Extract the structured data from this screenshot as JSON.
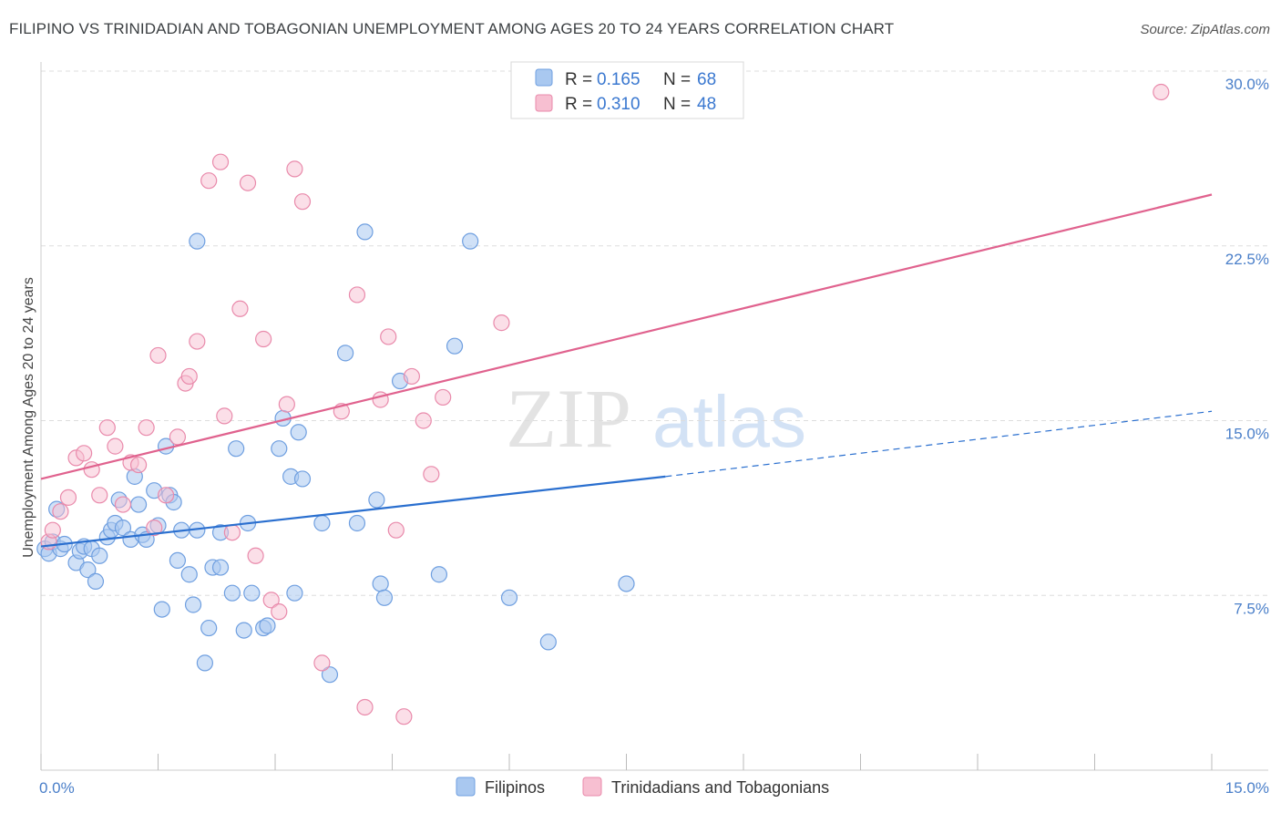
{
  "title": "FILIPINO VS TRINIDADIAN AND TOBAGONIAN UNEMPLOYMENT AMONG AGES 20 TO 24 YEARS CORRELATION CHART",
  "source": "Source: ZipAtlas.com",
  "watermark": {
    "zip": "ZIP",
    "atlas": "atlas"
  },
  "colors": {
    "blue_fill": "#a9c8f0",
    "blue_stroke": "#6f9fe0",
    "blue_line": "#2a6fcf",
    "pink_fill": "#f7bfd1",
    "pink_stroke": "#e98aab",
    "pink_line": "#e0628e",
    "tick": "#4a7fc9",
    "grid": "#dddddd"
  },
  "legend": {
    "rows": [
      {
        "r_label": "R =",
        "r_value": "0.165",
        "n_label": "N =",
        "n_value": "68"
      },
      {
        "r_label": "R =",
        "r_value": "0.310",
        "n_label": "N =",
        "n_value": "48"
      }
    ]
  },
  "bottom_legend": [
    "Filipinos",
    "Trinidadians and Tobagonians"
  ],
  "chart_data": {
    "type": "scatter",
    "title": "FILIPINO VS TRINIDADIAN AND TOBAGONIAN UNEMPLOYMENT AMONG AGES 20 TO 24 YEARS CORRELATION CHART",
    "xlabel": "",
    "ylabel": "Unemployment Among Ages 20 to 24 years",
    "xlim": [
      0,
      15
    ],
    "ylim": [
      0,
      30
    ],
    "x_ticks": [
      "0.0%",
      "15.0%"
    ],
    "y_ticks": [
      {
        "value": 7.5,
        "label": "7.5%"
      },
      {
        "value": 15,
        "label": "15.0%"
      },
      {
        "value": 22.5,
        "label": "22.5%"
      },
      {
        "value": 30,
        "label": "30.0%"
      }
    ],
    "grid": true,
    "legend_position": "top-center",
    "series": [
      {
        "name": "Filipinos",
        "color": "#a9c8f0",
        "trend": {
          "x": [
            0,
            8.0
          ],
          "y": [
            9.6,
            12.6
          ],
          "dashed_to": [
            15,
            15.4
          ]
        },
        "points": [
          [
            0.05,
            9.5
          ],
          [
            0.1,
            9.3
          ],
          [
            0.15,
            9.8
          ],
          [
            0.2,
            11.2
          ],
          [
            0.25,
            9.5
          ],
          [
            0.3,
            9.7
          ],
          [
            0.45,
            8.9
          ],
          [
            0.5,
            9.4
          ],
          [
            0.55,
            9.6
          ],
          [
            0.6,
            8.6
          ],
          [
            0.65,
            9.5
          ],
          [
            0.7,
            8.1
          ],
          [
            0.75,
            9.2
          ],
          [
            0.85,
            10.0
          ],
          [
            0.9,
            10.3
          ],
          [
            0.95,
            10.6
          ],
          [
            1.0,
            11.6
          ],
          [
            1.05,
            10.4
          ],
          [
            1.15,
            9.9
          ],
          [
            1.2,
            12.6
          ],
          [
            1.25,
            11.4
          ],
          [
            1.3,
            10.1
          ],
          [
            1.35,
            9.9
          ],
          [
            1.45,
            12.0
          ],
          [
            1.5,
            10.5
          ],
          [
            1.55,
            6.9
          ],
          [
            1.6,
            13.9
          ],
          [
            1.65,
            11.8
          ],
          [
            1.7,
            11.5
          ],
          [
            1.75,
            9.0
          ],
          [
            1.8,
            10.3
          ],
          [
            1.9,
            8.4
          ],
          [
            1.95,
            7.1
          ],
          [
            2.0,
            10.3
          ],
          [
            2.0,
            22.7
          ],
          [
            2.1,
            4.6
          ],
          [
            2.15,
            6.1
          ],
          [
            2.2,
            8.7
          ],
          [
            2.3,
            8.7
          ],
          [
            2.3,
            10.2
          ],
          [
            2.45,
            7.6
          ],
          [
            2.5,
            13.8
          ],
          [
            2.6,
            6.0
          ],
          [
            2.65,
            10.6
          ],
          [
            2.7,
            7.6
          ],
          [
            2.85,
            6.1
          ],
          [
            2.9,
            6.2
          ],
          [
            3.05,
            13.8
          ],
          [
            3.1,
            15.1
          ],
          [
            3.2,
            12.6
          ],
          [
            3.25,
            7.6
          ],
          [
            3.3,
            14.5
          ],
          [
            3.35,
            12.5
          ],
          [
            3.6,
            10.6
          ],
          [
            3.7,
            4.1
          ],
          [
            3.9,
            17.9
          ],
          [
            4.05,
            10.6
          ],
          [
            4.15,
            23.1
          ],
          [
            4.3,
            11.6
          ],
          [
            4.35,
            8.0
          ],
          [
            4.4,
            7.4
          ],
          [
            4.6,
            16.7
          ],
          [
            5.1,
            8.4
          ],
          [
            5.3,
            18.2
          ],
          [
            5.5,
            22.7
          ],
          [
            6.0,
            7.4
          ],
          [
            6.5,
            5.5
          ],
          [
            7.5,
            8.0
          ]
        ]
      },
      {
        "name": "Trinidadians and Tobagonians",
        "color": "#f7bfd1",
        "trend": {
          "x": [
            0,
            15
          ],
          "y": [
            12.5,
            24.7
          ]
        },
        "points": [
          [
            0.1,
            9.8
          ],
          [
            0.15,
            10.3
          ],
          [
            0.25,
            11.1
          ],
          [
            0.35,
            11.7
          ],
          [
            0.45,
            13.4
          ],
          [
            0.55,
            13.6
          ],
          [
            0.65,
            12.9
          ],
          [
            0.75,
            11.8
          ],
          [
            0.85,
            14.7
          ],
          [
            0.95,
            13.9
          ],
          [
            1.05,
            11.4
          ],
          [
            1.15,
            13.2
          ],
          [
            1.25,
            13.1
          ],
          [
            1.35,
            14.7
          ],
          [
            1.45,
            10.4
          ],
          [
            1.5,
            17.8
          ],
          [
            1.6,
            11.8
          ],
          [
            1.75,
            14.3
          ],
          [
            1.85,
            16.6
          ],
          [
            1.9,
            16.9
          ],
          [
            2.0,
            18.4
          ],
          [
            2.15,
            25.3
          ],
          [
            2.3,
            26.1
          ],
          [
            2.35,
            15.2
          ],
          [
            2.45,
            10.2
          ],
          [
            2.55,
            19.8
          ],
          [
            2.65,
            25.2
          ],
          [
            2.75,
            9.2
          ],
          [
            2.85,
            18.5
          ],
          [
            2.95,
            7.3
          ],
          [
            3.05,
            6.8
          ],
          [
            3.15,
            15.7
          ],
          [
            3.25,
            25.8
          ],
          [
            3.35,
            24.4
          ],
          [
            3.6,
            4.6
          ],
          [
            3.85,
            15.4
          ],
          [
            4.05,
            20.4
          ],
          [
            4.15,
            2.7
          ],
          [
            4.35,
            15.9
          ],
          [
            4.45,
            18.6
          ],
          [
            4.55,
            10.3
          ],
          [
            4.65,
            2.3
          ],
          [
            4.75,
            16.9
          ],
          [
            4.9,
            15.0
          ],
          [
            5.0,
            12.7
          ],
          [
            5.15,
            16.0
          ],
          [
            5.9,
            19.2
          ],
          [
            14.35,
            29.1
          ]
        ]
      }
    ]
  }
}
